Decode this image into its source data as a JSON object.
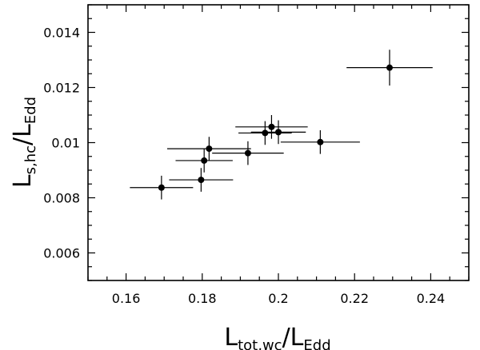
{
  "chart_data": {
    "type": "scatter",
    "x_label": {
      "main": "L",
      "sub": "tot,wc",
      "sep": "/",
      "main2": "L",
      "sub2": "Edd"
    },
    "y_label": {
      "main": "L",
      "sub": "s,hc",
      "sep": "/",
      "main2": "L",
      "sub2": "Edd"
    },
    "xlim": [
      0.15,
      0.25
    ],
    "ylim": [
      0.005,
      0.015
    ],
    "x_ticks": [
      "0.16",
      "0.18",
      "0.2",
      "0.22",
      "0.24"
    ],
    "x_tick_values": [
      0.16,
      0.18,
      0.2,
      0.22,
      0.24
    ],
    "y_ticks": [
      "0.006",
      "0.008",
      "0.01",
      "0.012",
      "0.014"
    ],
    "y_tick_values": [
      0.006,
      0.008,
      0.01,
      0.012,
      0.014
    ],
    "grid": false,
    "points": [
      {
        "x": 0.1693,
        "y": 0.00837,
        "xerr": 0.0083,
        "yerr": 0.00043
      },
      {
        "x": 0.1797,
        "y": 0.00865,
        "xerr": 0.0084,
        "yerr": 0.00043
      },
      {
        "x": 0.1805,
        "y": 0.00935,
        "xerr": 0.0075,
        "yerr": 0.00043
      },
      {
        "x": 0.1818,
        "y": 0.00978,
        "xerr": 0.011,
        "yerr": 0.00043
      },
      {
        "x": 0.192,
        "y": 0.00962,
        "xerr": 0.0094,
        "yerr": 0.00043
      },
      {
        "x": 0.1965,
        "y": 0.01035,
        "xerr": 0.007,
        "yerr": 0.00043
      },
      {
        "x": 0.1982,
        "y": 0.01057,
        "xerr": 0.0095,
        "yerr": 0.00043
      },
      {
        "x": 0.2,
        "y": 0.01038,
        "xerr": 0.0072,
        "yerr": 0.00043
      },
      {
        "x": 0.211,
        "y": 0.01002,
        "xerr": 0.0104,
        "yerr": 0.00043
      },
      {
        "x": 0.2292,
        "y": 0.01272,
        "xerr": 0.0113,
        "yerr": 0.00065
      }
    ]
  }
}
